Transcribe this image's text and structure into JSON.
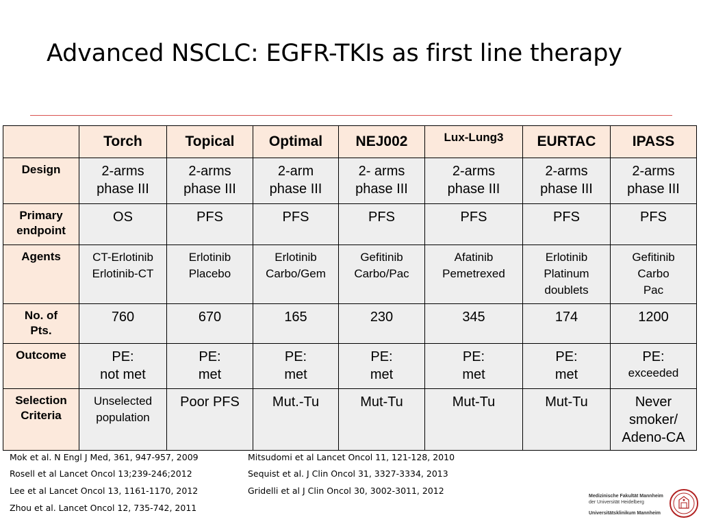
{
  "title": "Advanced NSCLC: EGFR-TKIs as first line therapy",
  "table": {
    "columns": [
      "Torch",
      "Topical",
      "Optimal",
      "NEJ002",
      "Lux-Lung3",
      "EURTAC",
      "IPASS"
    ],
    "rows": [
      {
        "label": [
          "Design"
        ],
        "cells": [
          [
            "2-arms",
            "phase III"
          ],
          [
            "2-arms",
            "phase III"
          ],
          [
            "2-arm",
            "phase III"
          ],
          [
            "2- arms",
            "phase III"
          ],
          [
            "2-arms",
            "phase III"
          ],
          [
            "2-arms",
            "phase III"
          ],
          [
            "2-arms",
            "phase III"
          ]
        ]
      },
      {
        "label": [
          "Primary",
          "endpoint"
        ],
        "cells": [
          [
            "OS"
          ],
          [
            "PFS"
          ],
          [
            "PFS"
          ],
          [
            "PFS"
          ],
          [
            "PFS"
          ],
          [
            "PFS"
          ],
          [
            "PFS"
          ]
        ]
      },
      {
        "label": [
          "Agents"
        ],
        "cells": [
          [
            "CT-Erlotinib",
            "Erlotinib-CT"
          ],
          [
            "Erlotinib",
            "Placebo"
          ],
          [
            "Erlotinib",
            "Carbo/Gem"
          ],
          [
            "Gefitinib",
            "Carbo/Pac"
          ],
          [
            "Afatinib",
            "Pemetrexed"
          ],
          [
            "Erlotinib",
            "Platinum",
            "doublets"
          ],
          [
            "Gefitinib",
            "Carbo",
            "Pac"
          ]
        ]
      },
      {
        "label": [
          "No. of",
          "Pts."
        ],
        "cells": [
          [
            "760"
          ],
          [
            "670"
          ],
          [
            "165"
          ],
          [
            "230"
          ],
          [
            "345"
          ],
          [
            "174"
          ],
          [
            "1200"
          ]
        ]
      },
      {
        "label": [
          "Outcome"
        ],
        "cells": [
          [
            "PE:",
            "not met"
          ],
          [
            "PE:",
            "met"
          ],
          [
            "PE:",
            "met"
          ],
          [
            "PE:",
            "met"
          ],
          [
            "PE:",
            "met"
          ],
          [
            "PE:",
            "met"
          ],
          [
            "PE:",
            "exceeded"
          ]
        ]
      },
      {
        "label": [
          "Selection",
          "Criteria"
        ],
        "cells": [
          [
            "Unselected",
            "population"
          ],
          [
            "Poor PFS"
          ],
          [
            "Mut.-Tu"
          ],
          [
            "Mut-Tu"
          ],
          [
            "Mut-Tu"
          ],
          [
            "Mut-Tu"
          ],
          [
            "Never",
            "smoker/",
            "Adeno-CA"
          ]
        ]
      }
    ]
  },
  "references": {
    "left": [
      "Mok et al. N Engl J Med, 361, 947-957, 2009",
      "Rosell et al  Lancet Oncol 13;239-246;2012",
      "Lee et al  Lancet Oncol 13, 1161-1170, 2012",
      "Zhou et al. Lancet Oncol 12, 735-742, 2011"
    ],
    "right": [
      "Mitsudomi et al Lancet Oncol 11, 121-128, 2010",
      "Sequist et al. J Clin Oncol 31, 3327-3334, 2013",
      "Gridelli et al J Clin Oncol 30, 3002-3011, 2012"
    ]
  },
  "logo": {
    "line1": "Medizinische Fakultät Mannheim",
    "line2": "der Universität Heidelberg",
    "line3": "Universitätsklinikum Mannheim",
    "seal_color": "#b22222"
  }
}
